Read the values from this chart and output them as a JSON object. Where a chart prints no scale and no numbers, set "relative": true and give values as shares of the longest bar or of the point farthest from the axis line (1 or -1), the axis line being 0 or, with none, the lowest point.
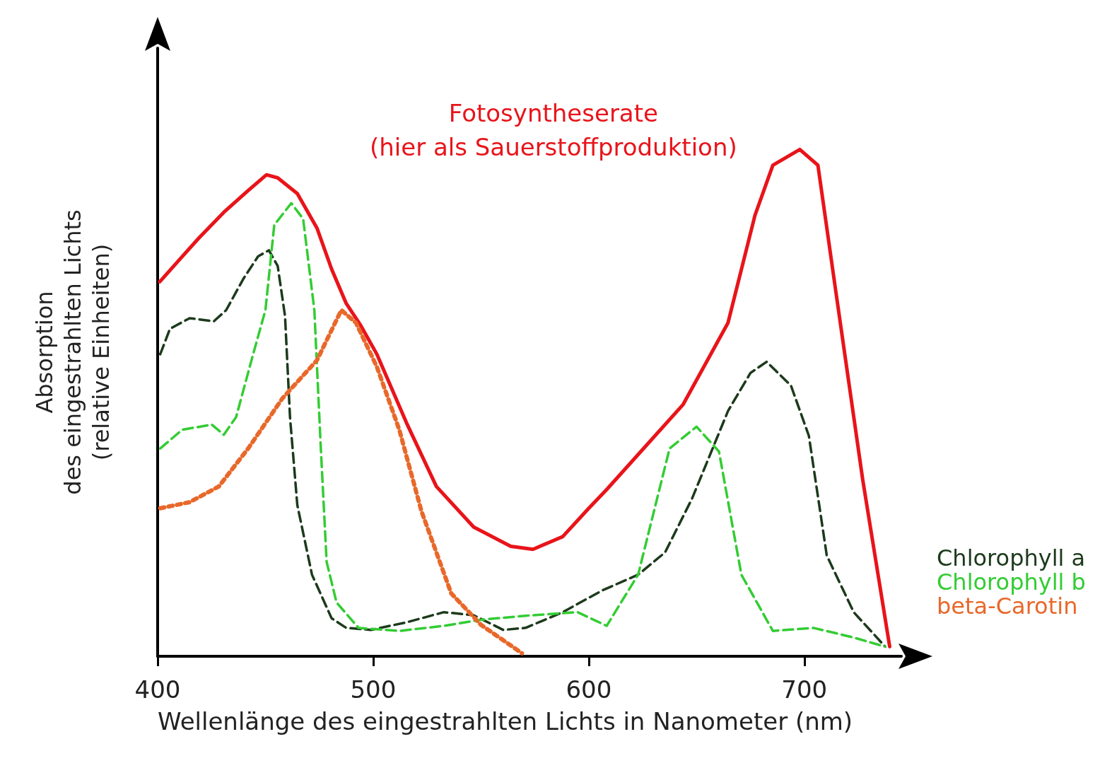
{
  "chart_data": {
    "type": "line",
    "relative": true,
    "xlabel": "Wellenlänge des eingestrahlten Lichts in Nanometer (nm)",
    "ylabel": "Absorption\ndes eingestrahlten Lichts\n(relative Einheiten)",
    "xlim": [
      400,
      745
    ],
    "xticks": [
      400,
      500,
      600,
      700
    ],
    "grid": false,
    "legend": "right",
    "marker": "none",
    "series": [
      {
        "name": "Fotosyntheserate\n(hier als Sauerstoffproduktion)",
        "color": "#e8141a",
        "line_style": "solid",
        "x": [
          401,
          410.2,
          419.3,
          430.7,
          442,
          450.5,
          455.7,
          464.8,
          473.9,
          480.7,
          487.5,
          494.3,
          501.7,
          515.5,
          529.3,
          546.6,
          563.8,
          574.1,
          587.9,
          600,
          608.3,
          622.9,
          643.8,
          664.6,
          677.1,
          685.4,
          697.9,
          706.3,
          714.6,
          727.1,
          739.6
        ],
        "values": [
          0.739,
          0.783,
          0.826,
          0.876,
          0.919,
          0.95,
          0.944,
          0.913,
          0.845,
          0.764,
          0.696,
          0.652,
          0.596,
          0.46,
          0.335,
          0.255,
          0.217,
          0.211,
          0.236,
          0.292,
          0.329,
          0.398,
          0.497,
          0.658,
          0.87,
          0.969,
          1,
          0.969,
          0.72,
          0.348,
          0.019
        ]
      },
      {
        "name": "Chlorophyll a",
        "color": "#1c3a1c",
        "line_style": "dashed",
        "x": [
          401.2,
          405.7,
          414.8,
          426.1,
          431.8,
          439.8,
          446.6,
          451.6,
          455.7,
          459.1,
          461.4,
          464.8,
          471.6,
          480.7,
          487.5,
          498.9,
          515.5,
          532.8,
          546.6,
          560.3,
          570.7,
          587.9,
          606.3,
          622.9,
          635.4,
          647.9,
          664.6,
          675,
          682.5,
          693.8,
          702.1,
          710.4,
          722.9,
          737.5
        ],
        "values": [
          0.596,
          0.646,
          0.667,
          0.661,
          0.683,
          0.745,
          0.789,
          0.801,
          0.77,
          0.671,
          0.472,
          0.298,
          0.161,
          0.075,
          0.056,
          0.052,
          0.067,
          0.087,
          0.081,
          0.052,
          0.056,
          0.087,
          0.13,
          0.161,
          0.205,
          0.311,
          0.484,
          0.559,
          0.581,
          0.534,
          0.435,
          0.199,
          0.087,
          0.019
        ]
      },
      {
        "name": "Chlorophyll b",
        "color": "#33cc33",
        "line_style": "dashed",
        "x": [
          401.2,
          411.4,
          425.1,
          430.7,
          436.4,
          444.3,
          450,
          454.1,
          462,
          467.5,
          472.7,
          475.7,
          478.4,
          483,
          493.2,
          512.1,
          532.8,
          550,
          570.7,
          594.8,
          608.3,
          622.9,
          637.5,
          650,
          660.4,
          670.8,
          685.4,
          704.2,
          722.9,
          737.5
        ],
        "values": [
          0.41,
          0.447,
          0.457,
          0.437,
          0.472,
          0.596,
          0.683,
          0.851,
          0.894,
          0.863,
          0.683,
          0.41,
          0.186,
          0.106,
          0.056,
          0.05,
          0.06,
          0.072,
          0.08,
          0.087,
          0.06,
          0.161,
          0.41,
          0.453,
          0.404,
          0.161,
          0.05,
          0.056,
          0.037,
          0.019
        ]
      },
      {
        "name": "beta-Carotin",
        "color": "#e8682a",
        "line_style": "dotted",
        "x": [
          401.2,
          414.8,
          428.4,
          442,
          457.9,
          473.9,
          485.2,
          492,
          501.7,
          512.1,
          522.4,
          536.2,
          550,
          569
        ],
        "values": [
          0.292,
          0.304,
          0.335,
          0.41,
          0.509,
          0.584,
          0.683,
          0.658,
          0.571,
          0.447,
          0.286,
          0.124,
          0.062,
          0.006
        ]
      }
    ]
  }
}
